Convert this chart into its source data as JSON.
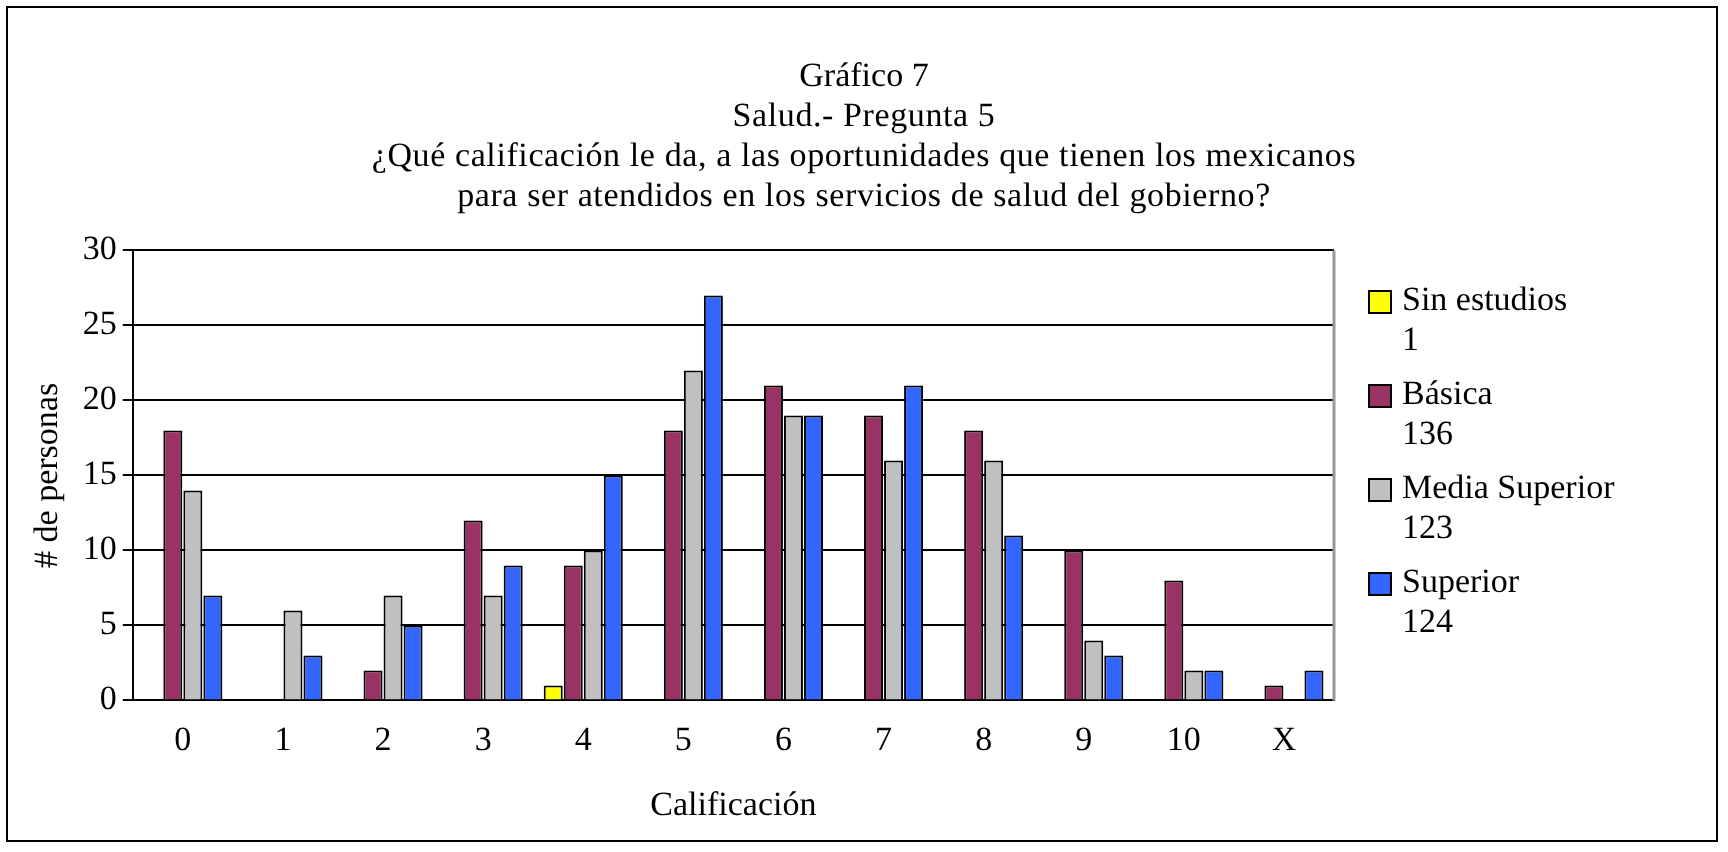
{
  "chart_data": {
    "type": "bar",
    "title": "Gráfico 7",
    "subtitle": "Salud.- Pregunta 5\n¿Qué calificación le da, a las oportunidades que tienen los mexicanos\npara ser atendidos en los servicios de salud del gobierno?",
    "xlabel": "Calificación",
    "ylabel": "# de personas",
    "categories": [
      "0",
      "1",
      "2",
      "3",
      "4",
      "5",
      "6",
      "7",
      "8",
      "9",
      "10",
      "X"
    ],
    "series": [
      {
        "name": "Sin estudios\n1",
        "color": "#ffff00",
        "values": [
          0,
          0,
          0,
          0,
          1,
          0,
          0,
          0,
          0,
          0,
          0,
          0
        ]
      },
      {
        "name": "Básica\n136",
        "color": "#993366",
        "values": [
          18,
          0,
          2,
          12,
          9,
          18,
          21,
          19,
          18,
          10,
          8,
          1
        ]
      },
      {
        "name": "Media Superior\n123",
        "color": "#c0c0c0",
        "values": [
          14,
          6,
          7,
          7,
          10,
          22,
          19,
          16,
          16,
          4,
          2,
          0
        ]
      },
      {
        "name": "Superior\n124",
        "color": "#3366ff",
        "values": [
          7,
          3,
          5,
          9,
          15,
          27,
          19,
          21,
          11,
          3,
          2,
          2
        ]
      }
    ],
    "ylim": [
      0,
      30
    ],
    "yticks": [
      0,
      5,
      10,
      15,
      20,
      25,
      30
    ],
    "grid": "y",
    "legend": "right"
  }
}
